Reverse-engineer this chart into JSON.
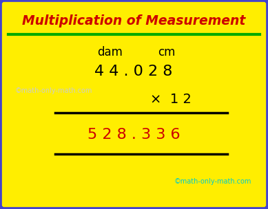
{
  "title": "Multiplication of Measurement",
  "title_color": "#cc0000",
  "title_fontsize": 13.5,
  "green_line_color": "#00aa00",
  "bg_color": "#ffee00",
  "border_color": "#4444cc",
  "border_linewidth": 7,
  "col_header_1": "dam",
  "col_header_2": "cm",
  "col_header_color": "#000000",
  "col_header_fontsize": 12,
  "row1_text": "4 4 . 0 2 8",
  "row1_color": "#000000",
  "row1_fontsize": 16,
  "row2_text": "×  1 2",
  "row2_color": "#000000",
  "row2_fontsize": 14,
  "row3_text": "5 2 8 . 3 3 6",
  "row3_color": "#cc0000",
  "row3_fontsize": 16,
  "line_color": "#000000",
  "watermark1": "©math-only-math.com",
  "watermark1_color": "#cccccc",
  "watermark1_fontsize": 7,
  "watermark2": "©math-only-math.com",
  "watermark2_color": "#00cccc",
  "watermark2_fontsize": 7,
  "figsize": [
    3.89,
    3.04
  ],
  "dpi": 100
}
